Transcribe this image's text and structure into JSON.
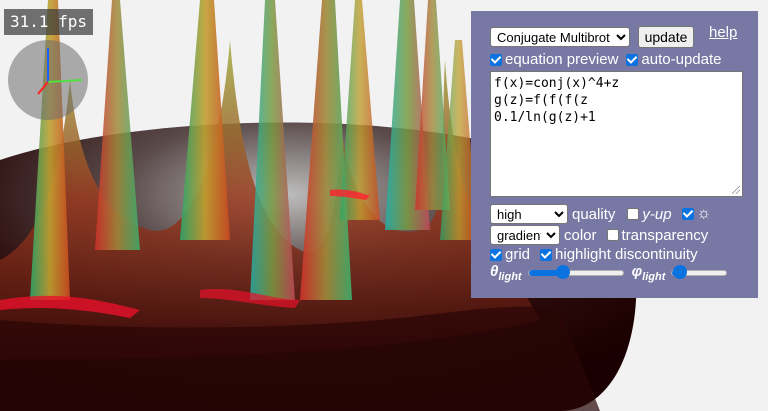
{
  "fps_text": "31.1 fps",
  "panel": {
    "function_select": {
      "selected": "Conjugate Multibrot"
    },
    "update_label": "update",
    "help_label": "help",
    "equation_preview": {
      "label": "equation preview",
      "checked": true
    },
    "auto_update": {
      "label": "auto-update",
      "checked": true
    },
    "code_lines": [
      "f(x)=conj(x)^4+z",
      "g(z)=f(f(f(z",
      "0.1/ln(g(z)+1"
    ],
    "quality": {
      "selected": "high",
      "label": "quality"
    },
    "y_up": {
      "label": "y-up",
      "checked": false
    },
    "light_toggle": {
      "icon": "sun-icon",
      "symbol": "☼",
      "checked": true
    },
    "color": {
      "selected": "gradient",
      "label": "color"
    },
    "transparency": {
      "label": "transparency",
      "checked": false
    },
    "grid": {
      "label": "grid",
      "checked": true
    },
    "highlight_discontinuity": {
      "label": "highlight discontinuity",
      "checked": true
    },
    "theta_light": {
      "symbol": "θ",
      "subscript": "light",
      "value": 0.37
    },
    "phi_light": {
      "symbol": "φ",
      "subscript": "light",
      "value": 0.15
    }
  },
  "colors": {
    "panel_bg": "#7878a4",
    "accent": "#0b73e0"
  }
}
